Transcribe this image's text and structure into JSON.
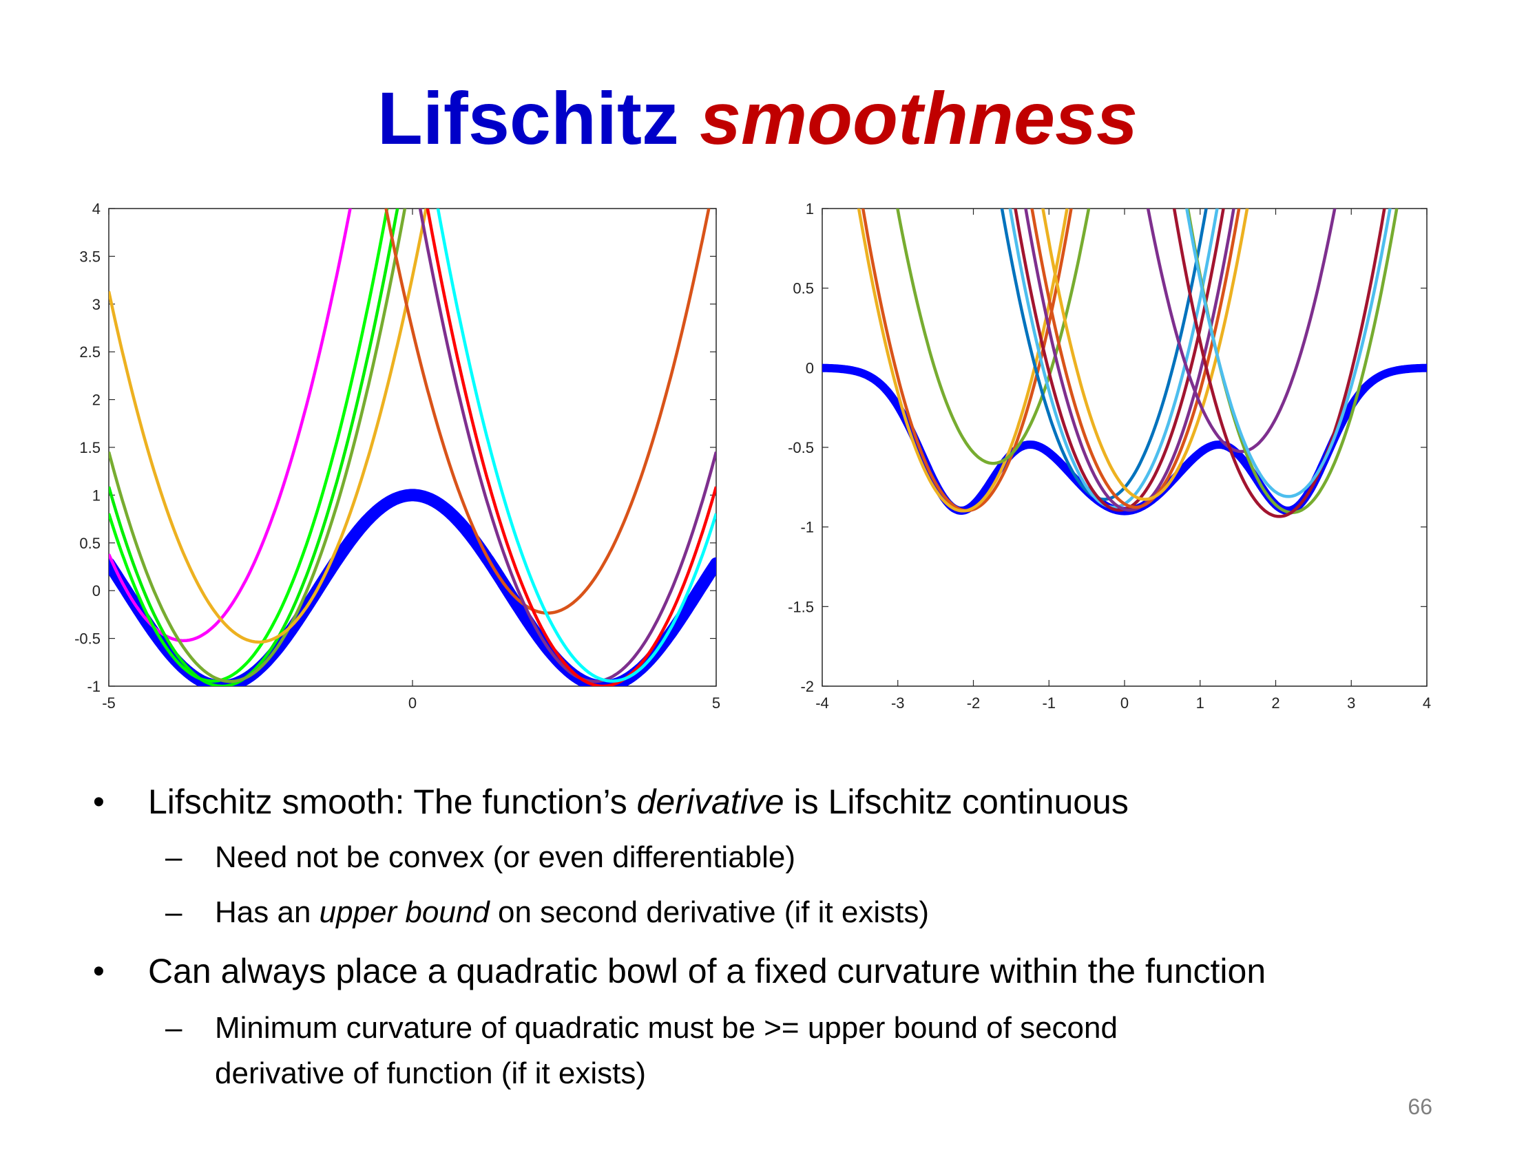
{
  "slide": {
    "title_part1": "Lifschitz",
    "title_part2": "smoothness",
    "page_number": "66"
  },
  "bullets": [
    {
      "marker": "•",
      "pre": "Lifschitz smooth: The function’s ",
      "em": "derivative",
      "post": " is Lifschitz continuous",
      "sub": [
        {
          "marker": "–",
          "pre": "Need not be convex (or even differentiable)",
          "em": "",
          "post": ""
        },
        {
          "marker": "–",
          "pre": "Has an ",
          "em": "upper bound",
          "post": " on second derivative (if it exists)"
        }
      ]
    },
    {
      "marker": "•",
      "pre": "Can always place a quadratic bowl of a fixed curvature within the function",
      "em": "",
      "post": "",
      "sub": [
        {
          "marker": "–",
          "line1": "Minimum curvature of quadratic must be >= upper bound of second",
          "line2": "derivative of function (if it exists)"
        }
      ]
    }
  ],
  "chart_data": [
    {
      "type": "line",
      "title": "",
      "xlabel": "",
      "ylabel": "",
      "xlim": [
        -5,
        5
      ],
      "ylim": [
        -1,
        4
      ],
      "xticks": [
        "-5",
        "0",
        "5"
      ],
      "yticks": [
        "-1",
        "-0.5",
        "0",
        "0.5",
        "1",
        "1.5",
        "2",
        "2.5",
        "3",
        "3.5",
        "4"
      ],
      "function": {
        "description_formula": "f(x) = cos(x)",
        "color": "#0000ff"
      },
      "quadratic_curvature": 1.2,
      "tangent_points": [
        -4.6,
        -3.8,
        -3.1,
        -2.5,
        -1.7,
        1.4,
        2.5,
        3.1,
        3.8
      ],
      "quadratic_colors": [
        "#ff00ff",
        "#00ff00",
        "#00ee00",
        "#77ac30",
        "#edb120",
        "#d95319",
        "#7e2f8e",
        "#ff0000",
        "#00ffff"
      ]
    },
    {
      "type": "line",
      "title": "",
      "xlabel": "",
      "ylabel": "",
      "xlim": [
        -4,
        4
      ],
      "ylim": [
        -2,
        1
      ],
      "xticks": [
        "-4",
        "-3",
        "-2",
        "-1",
        "0",
        "1",
        "2",
        "3",
        "4"
      ],
      "yticks": [
        "-2",
        "-1.5",
        "-1",
        "-0.5",
        "0",
        "0.5",
        "1"
      ],
      "function": {
        "description_formula": "sum of Gaussian wells (non-convex)",
        "color": "#0000ff"
      },
      "quadratic_curvature": 2.0,
      "tangent_points": [
        -2.6,
        -2.2,
        -1.5,
        -0.5,
        -0.3,
        -0.15,
        0.15,
        0.3,
        0.5,
        1.4,
        2.0,
        2.4,
        2.7
      ],
      "quadratic_colors": [
        "#d95319",
        "#edb120",
        "#77ac30",
        "#0072bd",
        "#4dbeee",
        "#a2142f",
        "#7e2f8e",
        "#d95319",
        "#edb120",
        "#7e2f8e",
        "#77ac30",
        "#a2142f",
        "#4dbeee"
      ]
    }
  ]
}
